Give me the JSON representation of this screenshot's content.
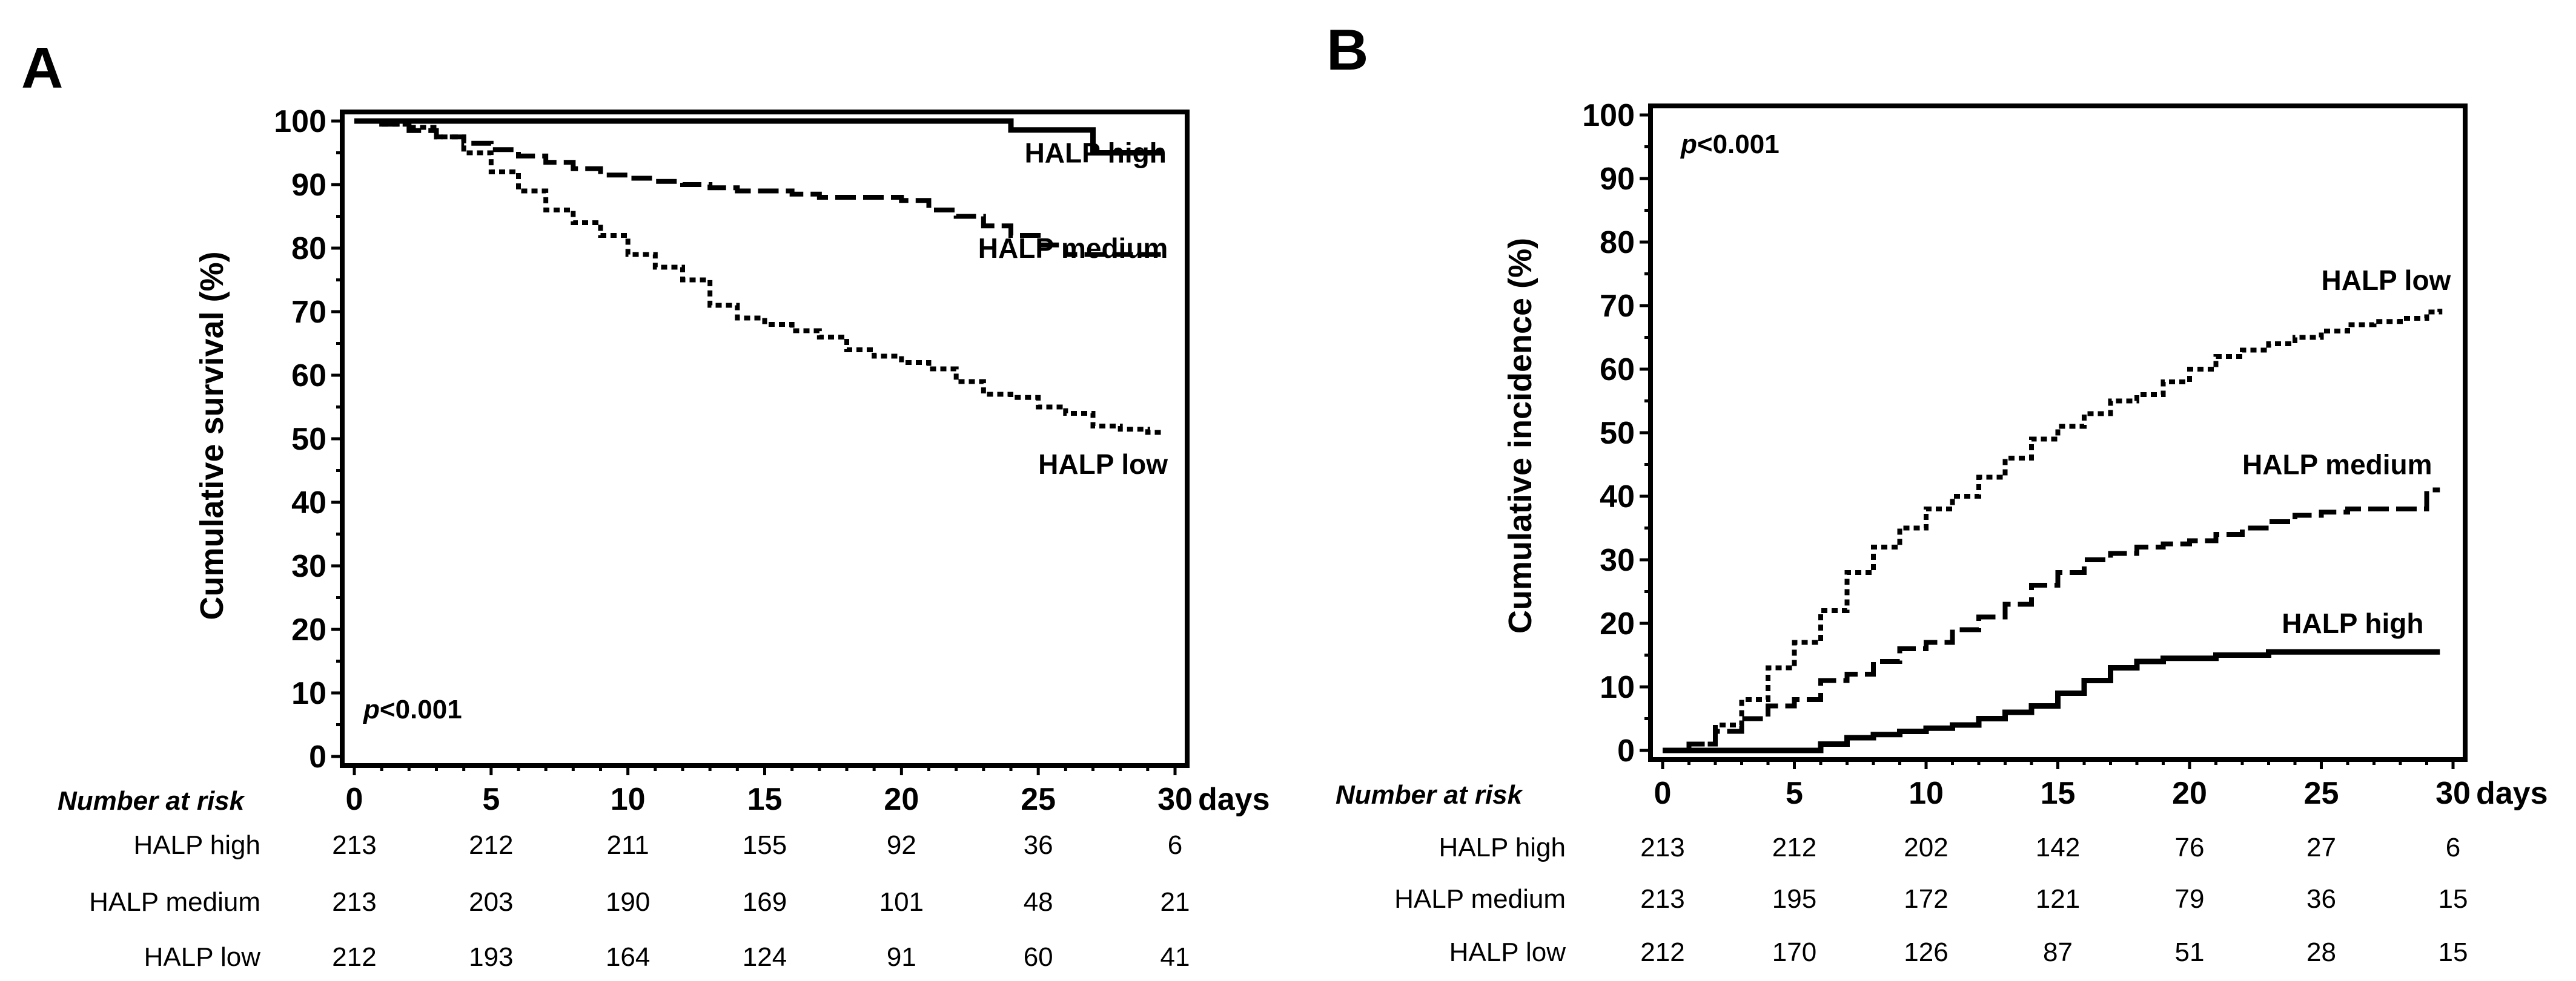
{
  "chart_data": [
    {
      "panel": "A",
      "type": "line",
      "step": true,
      "ylabel": "Cumulative survival (%)",
      "x_unit_label": "days",
      "xlim": [
        0,
        30
      ],
      "ylim": [
        0,
        100
      ],
      "xticks": [
        0,
        5,
        10,
        15,
        20,
        25,
        30
      ],
      "yticks": [
        0,
        10,
        20,
        30,
        40,
        50,
        60,
        70,
        80,
        90,
        100
      ],
      "pvalue": {
        "italic": "p",
        "rest": "<0.001"
      },
      "series": [
        {
          "name": "HALP high",
          "style": "solid",
          "label_x": 24.5,
          "label_y": 95,
          "x": [
            0,
            24,
            24,
            27,
            27,
            29.5
          ],
          "y": [
            100,
            100,
            98.6,
            98.6,
            95,
            95
          ]
        },
        {
          "name": "HALP medium",
          "style": "dashed",
          "label_x": 22.8,
          "label_y": 80,
          "x": [
            0,
            1,
            2,
            3,
            4,
            5,
            6,
            7,
            8,
            9,
            10,
            11,
            12,
            13,
            14,
            15,
            16,
            17,
            18,
            19,
            20,
            21,
            22,
            23,
            24,
            25,
            26,
            27,
            28,
            29,
            29.5
          ],
          "y": [
            100,
            99.5,
            98.5,
            97.5,
            96.5,
            95.5,
            94.5,
            93.5,
            92.5,
            91.5,
            91,
            90.5,
            90,
            89.5,
            89,
            89,
            88.5,
            88,
            88,
            88,
            87.5,
            86,
            85,
            83.5,
            82,
            80.5,
            79,
            79,
            79,
            79,
            79
          ]
        },
        {
          "name": "HALP low",
          "style": "dotted",
          "label_x": 25,
          "label_y": 46,
          "x": [
            0,
            1,
            2,
            3,
            4,
            5,
            6,
            7,
            8,
            9,
            10,
            11,
            12,
            13,
            14,
            15,
            16,
            17,
            18,
            19,
            20,
            21,
            22,
            23,
            24,
            25,
            26,
            27,
            28,
            29,
            29.5
          ],
          "y": [
            100,
            99.5,
            99,
            97.5,
            95,
            92,
            89,
            86,
            84,
            82,
            79,
            77,
            75,
            71,
            69,
            68,
            67,
            66,
            64,
            63,
            62,
            61,
            59,
            57,
            56.5,
            55,
            54,
            52,
            51.5,
            51,
            51
          ]
        }
      ],
      "risk_table": {
        "header": "Number at risk",
        "time_points": [
          0,
          5,
          10,
          15,
          20,
          25,
          30
        ],
        "rows": [
          {
            "label": "HALP high",
            "values": [
              "213",
              "212",
              "211",
              "155",
              "92",
              "36",
              "6"
            ]
          },
          {
            "label": "HALP medium",
            "values": [
              "213",
              "203",
              "190",
              "169",
              "101",
              "48",
              "21"
            ]
          },
          {
            "label": "HALP low",
            "values": [
              "212",
              "193",
              "164",
              "124",
              "91",
              "60",
              "41"
            ]
          }
        ]
      }
    },
    {
      "panel": "B",
      "type": "line",
      "step": true,
      "ylabel": "Cumulative incidence (%)",
      "x_unit_label": "days",
      "xlim": [
        0,
        30
      ],
      "ylim": [
        0,
        100
      ],
      "xticks": [
        0,
        5,
        10,
        15,
        20,
        25,
        30
      ],
      "yticks": [
        0,
        10,
        20,
        30,
        40,
        50,
        60,
        70,
        80,
        90,
        100
      ],
      "pvalue": {
        "italic": "p",
        "rest": "<0.001"
      },
      "series": [
        {
          "name": "HALP low",
          "style": "dotted",
          "label_x": 25,
          "label_y": 74,
          "x": [
            0,
            1,
            2,
            3,
            4,
            5,
            6,
            7,
            8,
            9,
            10,
            11,
            12,
            13,
            14,
            15,
            16,
            17,
            18,
            19,
            20,
            21,
            22,
            23,
            24,
            25,
            26,
            27,
            28,
            29,
            29.5
          ],
          "y": [
            0,
            1,
            4,
            8,
            13,
            17,
            22,
            28,
            32,
            35,
            38,
            40,
            43,
            46,
            49,
            51,
            53,
            55,
            56,
            58,
            60,
            62,
            63,
            64,
            65,
            66,
            67,
            67.5,
            68,
            69,
            69.5
          ]
        },
        {
          "name": "HALP medium",
          "style": "dashed",
          "label_x": 22,
          "label_y": 45,
          "x": [
            0,
            1,
            2,
            3,
            4,
            5,
            6,
            7,
            8,
            9,
            10,
            11,
            12,
            13,
            14,
            15,
            16,
            17,
            18,
            19,
            20,
            21,
            22,
            23,
            24,
            25,
            26,
            27,
            28,
            29,
            29.5
          ],
          "y": [
            0,
            1,
            3,
            5,
            7,
            8,
            11,
            12,
            14,
            16,
            17,
            19,
            21,
            23,
            26,
            28,
            30,
            31,
            32,
            32.5,
            33,
            34,
            35,
            36,
            37,
            37.5,
            38,
            38,
            38,
            41,
            41
          ]
        },
        {
          "name": "HALP high",
          "style": "solid",
          "label_x": 23.5,
          "label_y": 20,
          "x": [
            0,
            5,
            6,
            7,
            8,
            9,
            10,
            11,
            12,
            13,
            14,
            15,
            16,
            17,
            18,
            19,
            20,
            21,
            22,
            23,
            24,
            25,
            26,
            27,
            28,
            29,
            29.5
          ],
          "y": [
            0,
            0,
            1,
            2,
            2.5,
            3,
            3.5,
            4,
            5,
            6,
            7,
            9,
            11,
            13,
            14,
            14.5,
            14.5,
            15,
            15,
            15.5,
            15.5,
            15.5,
            15.5,
            15.5,
            15.5,
            15.5,
            15.5
          ]
        }
      ],
      "risk_table": {
        "header": "Number at risk",
        "time_points": [
          0,
          5,
          10,
          15,
          20,
          25,
          30
        ],
        "rows": [
          {
            "label": "HALP high",
            "values": [
              "213",
              "212",
              "202",
              "142",
              "76",
              "27",
              "6"
            ]
          },
          {
            "label": "HALP medium",
            "values": [
              "213",
              "195",
              "172",
              "121",
              "79",
              "36",
              "15"
            ]
          },
          {
            "label": "HALP low",
            "values": [
              "212",
              "170",
              "126",
              "87",
              "51",
              "28",
              "15"
            ]
          }
        ]
      }
    }
  ]
}
